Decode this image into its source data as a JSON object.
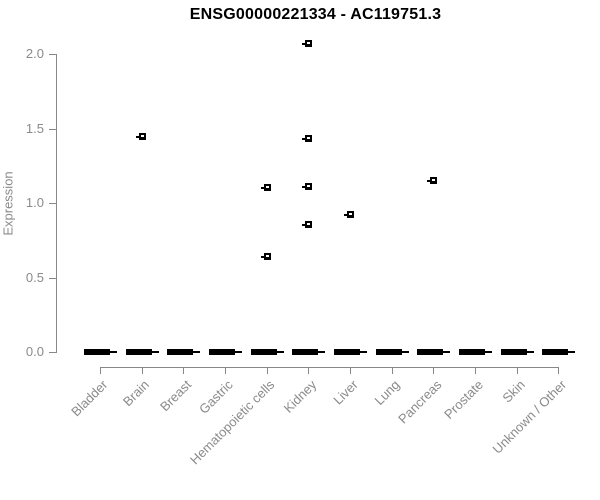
{
  "chart_data": {
    "type": "scatter",
    "title": "ENSG00000221334 - AC119751.3",
    "xlabel": "",
    "ylabel": "Expression",
    "ylim": [
      0,
      2.07
    ],
    "yticks": [
      "0.0",
      "0.5",
      "1.0",
      "1.5",
      "2.0"
    ],
    "grid": false,
    "legend": false,
    "categories": [
      "Bladder",
      "Brain",
      "Breast",
      "Gastric",
      "Hematopoietic cells",
      "Kidney",
      "Liver",
      "Lung",
      "Pancreas",
      "Prostate",
      "Skin",
      "Unknown / Other"
    ],
    "baseline_bars": {
      "value": 0.0,
      "present_in_all_categories": true,
      "description": "dense overlapping samples at zero expression drawn as a thick black dash in every category"
    },
    "points": [
      {
        "category": "Brain",
        "value": 1.44
      },
      {
        "category": "Hematopoietic cells",
        "value": 1.1
      },
      {
        "category": "Hematopoietic cells",
        "value": 0.64
      },
      {
        "category": "Kidney",
        "value": 2.07
      },
      {
        "category": "Kidney",
        "value": 1.43
      },
      {
        "category": "Kidney",
        "value": 1.11
      },
      {
        "category": "Kidney",
        "value": 0.85
      },
      {
        "category": "Liver",
        "value": 0.92
      },
      {
        "category": "Pancreas",
        "value": 1.15
      }
    ],
    "colors": {
      "points": "#000000",
      "baseline_bars": "#000000",
      "axis_lines": "#888888",
      "tick_text": "#8a8a8a",
      "title_text": "#000000"
    }
  }
}
